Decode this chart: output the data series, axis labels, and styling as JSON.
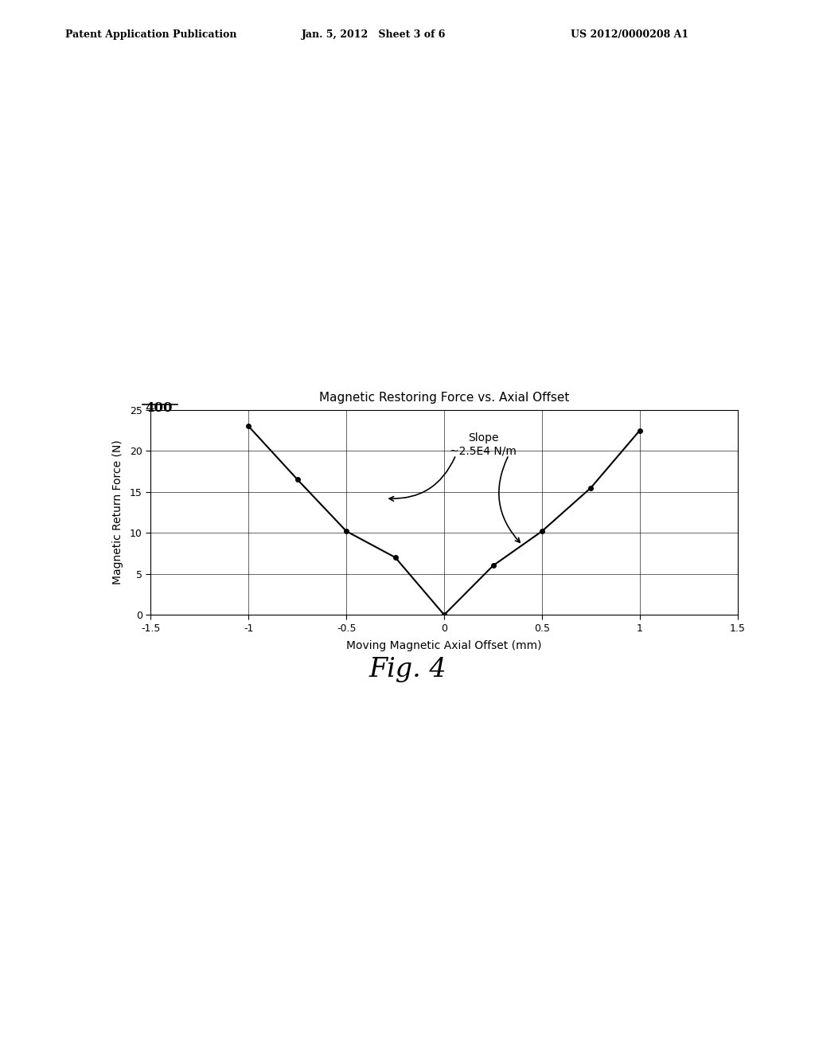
{
  "title": "Magnetic Restoring Force vs. Axial Offset",
  "xlabel": "Moving Magnetic Axial Offset (mm)",
  "ylabel": "Magnetic Return Force (N)",
  "xlim": [
    -1.5,
    1.5
  ],
  "ylim": [
    0,
    25
  ],
  "xticks": [
    -1.5,
    -1.0,
    -0.5,
    0.0,
    0.5,
    1.0,
    1.5
  ],
  "xtick_labels": [
    "-1.5",
    "-1",
    "-0.5",
    "0",
    "0.5",
    "1",
    "1.5"
  ],
  "yticks": [
    0,
    5,
    10,
    15,
    20,
    25
  ],
  "ytick_labels": [
    "0",
    "5",
    "10",
    "15",
    "20",
    "25"
  ],
  "data_points_x": [
    -1.0,
    -0.75,
    -0.5,
    -0.25,
    0.0,
    0.25,
    0.5,
    0.75,
    1.0
  ],
  "data_points_y": [
    23.0,
    16.5,
    10.2,
    7.0,
    0.0,
    6.0,
    10.2,
    15.5,
    22.5
  ],
  "slope_label_line1": "Slope",
  "slope_label_line2": "~2.5E4 N/m",
  "header_left": "Patent Application Publication",
  "header_center": "Jan. 5, 2012   Sheet 3 of 6",
  "header_right": "US 2012/0000208 A1",
  "fig_label": "Fig. 4",
  "ref_num": "400",
  "background_color": "#ffffff",
  "line_color": "#000000",
  "grid_color": "#000000",
  "text_color": "#000000"
}
